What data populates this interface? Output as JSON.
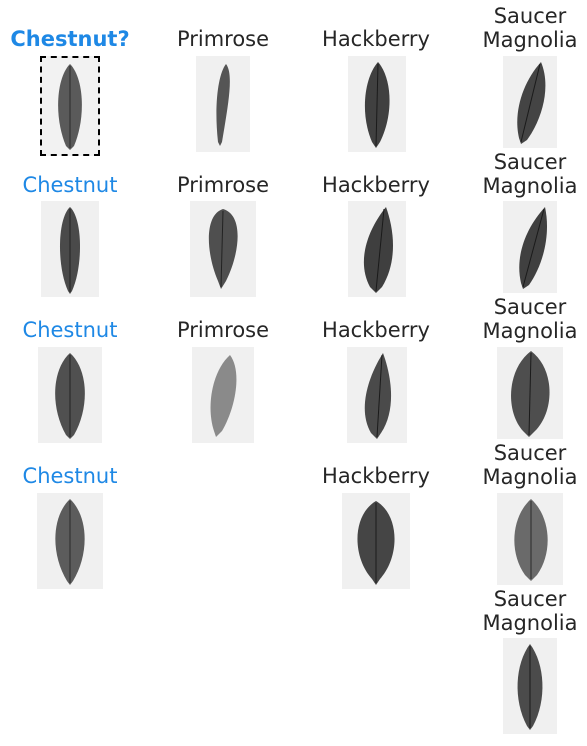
{
  "query": {
    "label": "Chestnut?"
  },
  "columns": [
    {
      "key": "chestnut",
      "label": "Chestnut",
      "items": [
        {
          "label": "Chestnut"
        },
        {
          "label": "Chestnut"
        },
        {
          "label": "Chestnut"
        }
      ]
    },
    {
      "key": "primrose",
      "items": [
        {
          "label": "Primrose"
        },
        {
          "label": "Primrose"
        },
        {
          "label": "Primrose"
        }
      ]
    },
    {
      "key": "hackberry",
      "items": [
        {
          "label": "Hackberry"
        },
        {
          "label": "Hackberry"
        },
        {
          "label": "Hackberry"
        },
        {
          "label": "Hackberry"
        }
      ]
    },
    {
      "key": "saucer-magnolia",
      "items": [
        {
          "label": "Saucer Magnolia"
        },
        {
          "label": "Saucer Magnolia"
        },
        {
          "label": "Saucer Magnolia"
        },
        {
          "label": "Saucer Magnolia"
        },
        {
          "label": "Saucer Magnolia"
        }
      ]
    }
  ],
  "colors": {
    "query_label": "#1e88e5",
    "match_label": "#1e88e5",
    "other_label": "#262626",
    "thumb_bg": "#f0f0f0",
    "leaf_dark": "#3a3a3a",
    "leaf_light": "#8a8a8a"
  }
}
